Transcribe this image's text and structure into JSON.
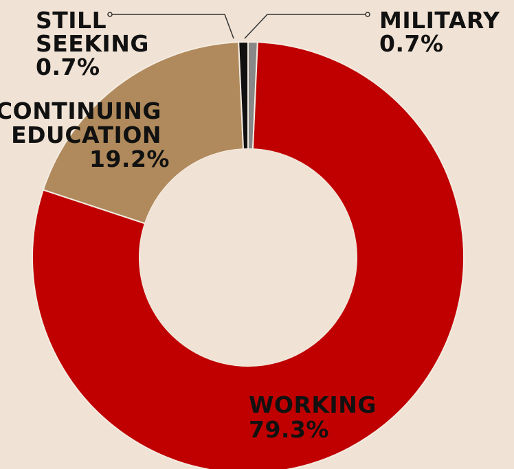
{
  "chart_data": {
    "type": "pie",
    "donut": true,
    "slices": [
      {
        "label_lines": [
          "MILITARY"
        ],
        "value_text": "0.7%",
        "value": 0.7,
        "color": "#888888"
      },
      {
        "label_lines": [
          "WORKING"
        ],
        "value_text": "79.3%",
        "value": 79.3,
        "color": "#c00000"
      },
      {
        "label_lines": [
          "CONTINUING",
          "EDUCATION"
        ],
        "value_text": "19.2%",
        "value": 19.2,
        "color": "#b08a5c"
      },
      {
        "label_lines": [
          "STILL",
          "SEEKING"
        ],
        "value_text": "0.7%",
        "value": 0.7,
        "color": "#111111"
      }
    ],
    "colors": {
      "background": "#f0e2d4",
      "hole": "#f0e2d4",
      "separator": "#f4ece2"
    }
  }
}
